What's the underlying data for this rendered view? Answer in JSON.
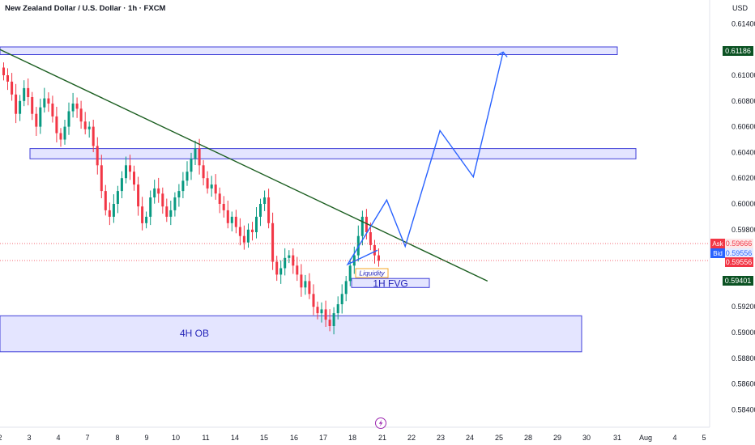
{
  "header": {
    "title": "New Zealand Dollar / U.S. Dollar · 1h · FXCM",
    "currency": "USD"
  },
  "chart_data": {
    "type": "candlestick",
    "title": "New Zealand Dollar / U.S. Dollar · 1h · FXCM",
    "ylabel": "USD",
    "ylim": [
      0.5835,
      0.6155
    ],
    "y_ticks": [
      "0.61400",
      "0.61000",
      "0.60800",
      "0.60600",
      "0.60400",
      "0.60200",
      "0.60000",
      "0.59800",
      "0.59200",
      "0.59000",
      "0.58800",
      "0.58600",
      "0.58400"
    ],
    "x_ticks": [
      "2",
      "3",
      "4",
      "7",
      "8",
      "9",
      "10",
      "11",
      "14",
      "15",
      "16",
      "17",
      "18",
      "21",
      "22",
      "23",
      "24",
      "25",
      "28",
      "29",
      "30",
      "31",
      "Aug",
      "4",
      "5"
    ],
    "price_tags": {
      "target": "0.61186",
      "ask_label": "Ask",
      "ask": "0.59666",
      "bid_label": "Bid",
      "bid": "0.59556",
      "last": "0.59556",
      "fvg_level": "0.59401"
    },
    "zones": [
      {
        "label": "",
        "name": "top-resistance",
        "y_top": 0.6122,
        "y_bottom": 0.6116
      },
      {
        "label": "",
        "name": "mid-resistance",
        "y_top": 0.6043,
        "y_bottom": 0.6035
      },
      {
        "label": "1H FVG",
        "name": "fvg-1h",
        "y_top": 0.5942,
        "y_bottom": 0.5935
      },
      {
        "label": "4H OB",
        "name": "ob-4h",
        "y_top": 0.5913,
        "y_bottom": 0.5885
      }
    ],
    "annotations": {
      "liquidity": "Liquidity"
    },
    "trendline": {
      "from": [
        0.0,
        0.612
      ],
      "to": [
        0.687,
        0.594
      ]
    },
    "projection": [
      [
        0.49,
        0.5953
      ],
      [
        0.545,
        0.6003
      ],
      [
        0.571,
        0.5967
      ],
      [
        0.62,
        0.6057
      ],
      [
        0.667,
        0.6021
      ],
      [
        0.709,
        0.6118
      ]
    ],
    "candles_close": [
      0.61,
      0.6095,
      0.6085,
      0.607,
      0.608,
      0.609,
      0.6083,
      0.607,
      0.606,
      0.6075,
      0.6082,
      0.6078,
      0.6068,
      0.6055,
      0.605,
      0.606,
      0.6072,
      0.6078,
      0.6074,
      0.6064,
      0.6058,
      0.606,
      0.6045,
      0.603,
      0.601,
      0.5995,
      0.599,
      0.6,
      0.601,
      0.602,
      0.603,
      0.6025,
      0.6015,
      0.5998,
      0.5985,
      0.599,
      0.6005,
      0.6012,
      0.6008,
      0.5998,
      0.599,
      0.5995,
      0.6005,
      0.601,
      0.6018,
      0.6025,
      0.6035,
      0.6043,
      0.603,
      0.602,
      0.6012,
      0.6015,
      0.6008,
      0.6,
      0.5995,
      0.5985,
      0.599,
      0.5982,
      0.5975,
      0.597,
      0.598,
      0.5978,
      0.599,
      0.6,
      0.6005,
      0.5985,
      0.5955,
      0.5945,
      0.595,
      0.5958,
      0.596,
      0.5952,
      0.5945,
      0.5935,
      0.594,
      0.593,
      0.592,
      0.5915,
      0.5918,
      0.591,
      0.5905,
      0.5915,
      0.5922,
      0.593,
      0.594,
      0.5952,
      0.596,
      0.5975,
      0.599,
      0.5978,
      0.5968,
      0.596,
      0.5956
    ]
  }
}
